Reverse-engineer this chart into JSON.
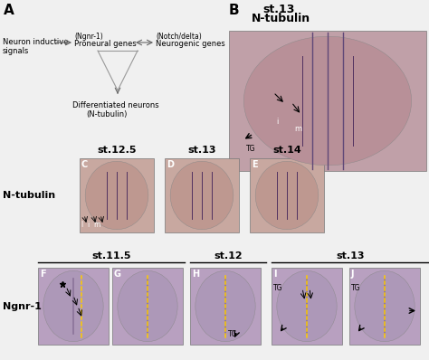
{
  "bg_color": "#f0f0f0",
  "panel_A_label": "A",
  "panel_B_label": "B",
  "panel_B_title1": "st.13",
  "panel_B_title2": "N-tubulin",
  "row2_label": "N-tubulin",
  "row3_label": "Ngnr-1",
  "row2_stages": [
    "st.12.5",
    "st.13",
    "st.14"
  ],
  "row2_panels": [
    "C",
    "D",
    "E"
  ],
  "row3_stage_labels": [
    "st.11.5",
    "st.12",
    "st.13"
  ],
  "row3_panels": [
    "F",
    "G",
    "H",
    "I",
    "J"
  ],
  "diagram": {
    "neuron_inductive": "Neuron inductive",
    "signals": "signals",
    "ngnr1": "(Ngnr-1)",
    "proneural": "Proneural genes",
    "notch": "(Notch/delta)",
    "neurogenic": "Neurogenic genes",
    "differentiated": "Differentiated neurons",
    "ntubulin": "(N-tubulin)"
  },
  "embryo_bg": "#c8a8b8",
  "embryo_skin": "#c090a0",
  "purple_stain": "#5a3a6a",
  "yellow_dash": "#ffcc00"
}
